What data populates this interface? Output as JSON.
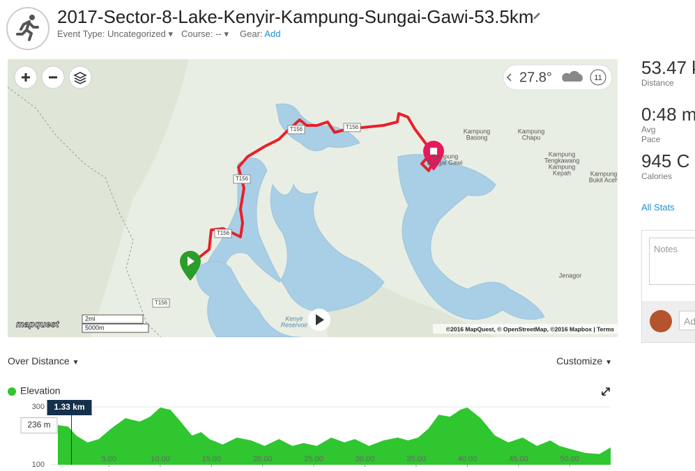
{
  "header": {
    "title": "2017-Sector-8-Lake-Kenyir-Kampung-Sungai-Gawi-53.5km",
    "event_type_label": "Event Type:",
    "event_type": "Uncategorized",
    "course_label": "Course:",
    "course": "--",
    "gear_label": "Gear:",
    "gear_action": "Add"
  },
  "map": {
    "weather": {
      "temperature": "27.8°",
      "badge": "11"
    },
    "scale": {
      "imperial": "2mi",
      "metric": "5000m"
    },
    "logo": "mapquest",
    "attribution": "©2016 MapQuest, © OpenStreetMap, ©2016 Mapbox | Terms",
    "places": [
      [
        "Kampung",
        "Basong"
      ],
      [
        "Kampung",
        "Chapu"
      ],
      [
        "Kampung",
        "Sungai Gawi"
      ],
      [
        "Kampung",
        "Tengkawang",
        "Kampung",
        "Kepah"
      ],
      [
        "Kampung",
        "Bukit Aceh"
      ],
      [
        "Jenagor"
      ],
      [
        "Kenyir",
        "Reservoir"
      ]
    ],
    "roads": [
      "T156",
      "T156",
      "T156",
      "T156",
      "T156"
    ]
  },
  "stats": [
    {
      "value": "53.47 k",
      "label": "Distance"
    },
    {
      "value": "0:48 m",
      "label": "Avg Pace"
    },
    {
      "value": "945 C",
      "label": "Calories"
    }
  ],
  "all_stats": "All Stats",
  "notes": {
    "placeholder": "Notes",
    "comment_placeholder": "Ad"
  },
  "chart_controls": {
    "view": "Over Distance",
    "customize": "Customize"
  },
  "chart_data": {
    "type": "area",
    "x": [
      0,
      1.0,
      1.8,
      2.9,
      4.0,
      5.2,
      6.6,
      8.0,
      9.0,
      10.0,
      11.0,
      12.0,
      13.1,
      14.0,
      14.8,
      16.1,
      17.5,
      18.9,
      20.2,
      21.6,
      22.9,
      24.0,
      25.3,
      26.7,
      28.0,
      29.0,
      30.4,
      31.8,
      33.2,
      34.2,
      35.2,
      36.2,
      37.2,
      38.3,
      39.3,
      40.0,
      41.3,
      42.7,
      44.0,
      45.4,
      46.8,
      48.1,
      49.0,
      50.2,
      51.5,
      52.9,
      54.0
    ],
    "series": [
      {
        "name": "Elevation",
        "color": "#2fc62f",
        "values": [
          237,
          232,
          201,
          177,
          189,
          225,
          261,
          249,
          266,
          298,
          290,
          249,
          201,
          213,
          189,
          170,
          194,
          184,
          165,
          189,
          165,
          175,
          165,
          194,
          177,
          189,
          165,
          184,
          194,
          184,
          194,
          225,
          273,
          266,
          290,
          298,
          261,
          201,
          177,
          194,
          165,
          184,
          165,
          153,
          141,
          137,
          160
        ]
      }
    ],
    "xlim": [
      0,
      54
    ],
    "ylim": [
      100,
      300
    ],
    "xticks": [
      {
        "value": 5,
        "label": "5.00"
      },
      {
        "value": 10,
        "label": "10.00"
      },
      {
        "value": 15,
        "label": "15.00"
      },
      {
        "value": 20,
        "label": "20.00"
      },
      {
        "value": 25,
        "label": "25.00"
      },
      {
        "value": 30,
        "label": "30.00"
      },
      {
        "value": 35,
        "label": "35.00"
      },
      {
        "value": 40,
        "label": "40.00"
      },
      {
        "value": 45,
        "label": "45.00"
      },
      {
        "value": 50,
        "label": "50.00"
      }
    ],
    "yticks": [
      100,
      300
    ],
    "grid": true,
    "cursor": {
      "x": 1.33,
      "x_label": "1.33 km",
      "y": 236,
      "y_label": "236 m"
    }
  }
}
